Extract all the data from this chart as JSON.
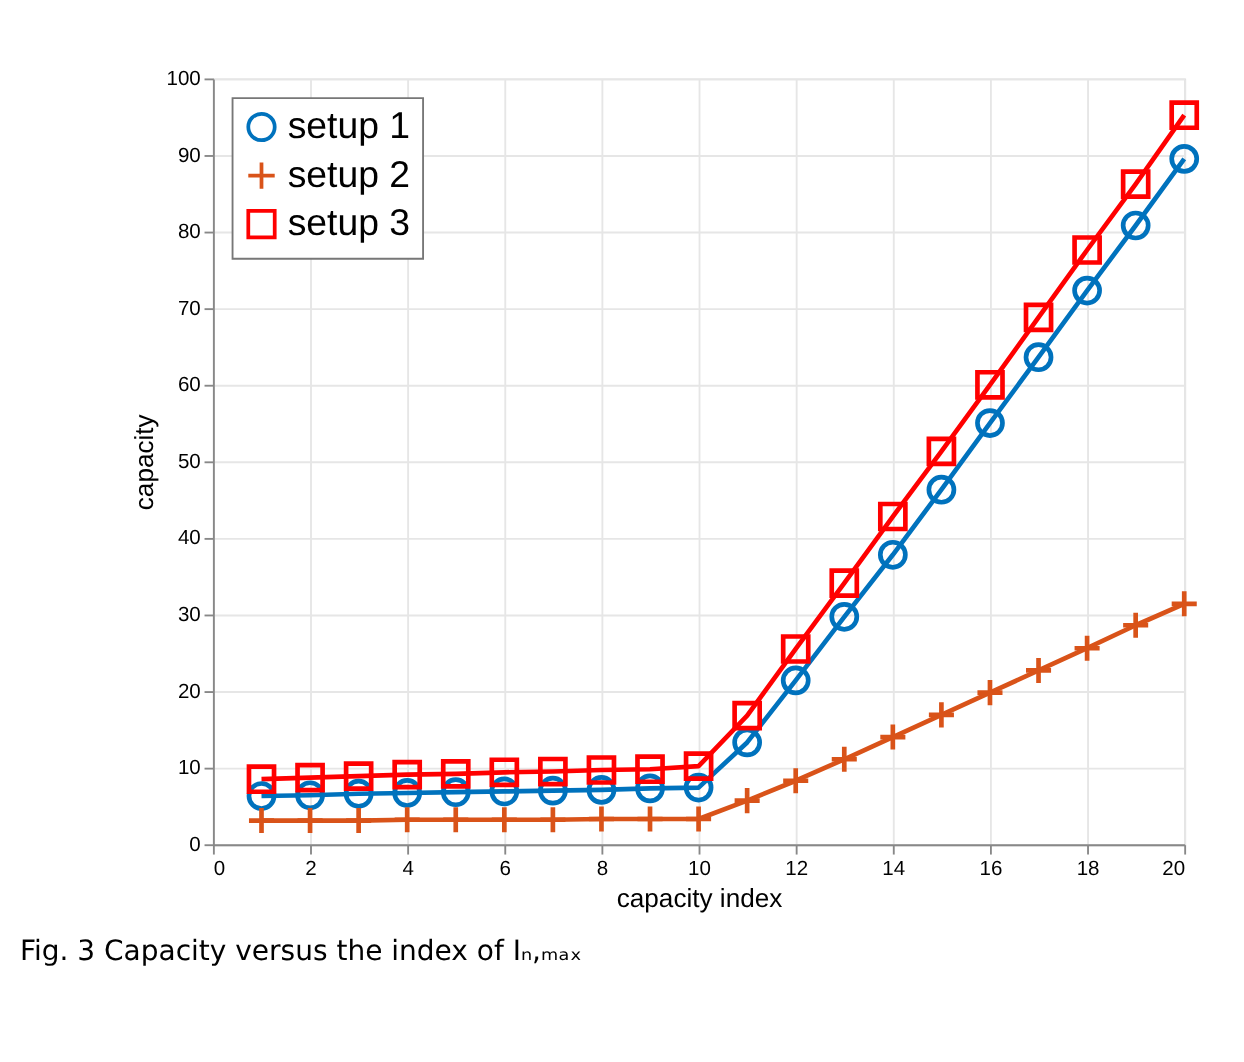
{
  "chart_data": {
    "type": "line",
    "xlabel": "capacity index",
    "ylabel": "capacity",
    "x": [
      1,
      2,
      3,
      4,
      5,
      6,
      7,
      8,
      9,
      10,
      11,
      12,
      13,
      14,
      15,
      16,
      17,
      18,
      19,
      20
    ],
    "series": [
      {
        "name": "setup 1",
        "color": "#0072bd",
        "marker": "circle",
        "values": [
          6.3,
          6.4,
          6.6,
          6.7,
          6.8,
          6.9,
          7.0,
          7.1,
          7.3,
          7.4,
          13.3,
          21.4,
          29.7,
          37.8,
          46.3,
          55.0,
          63.6,
          72.3,
          80.8,
          89.5
        ]
      },
      {
        "name": "setup 2",
        "color": "#d95319",
        "marker": "cross",
        "values": [
          3.1,
          3.1,
          3.1,
          3.2,
          3.2,
          3.2,
          3.2,
          3.3,
          3.3,
          3.3,
          5.7,
          8.3,
          11.1,
          14.0,
          16.9,
          19.8,
          22.7,
          25.6,
          28.6,
          31.4
        ]
      },
      {
        "name": "setup 3",
        "color": "#ff0000",
        "marker": "square",
        "values": [
          8.5,
          8.7,
          8.9,
          9.1,
          9.2,
          9.4,
          9.5,
          9.7,
          9.8,
          10.2,
          16.8,
          25.5,
          34.1,
          42.8,
          51.3,
          60.0,
          68.8,
          77.6,
          86.2,
          95.2
        ]
      }
    ],
    "xlim": [
      0,
      20
    ],
    "xticks": [
      0,
      2,
      4,
      6,
      8,
      10,
      12,
      14,
      16,
      18,
      20
    ],
    "ylim": [
      0,
      100
    ],
    "yticks": [
      0,
      10,
      20,
      30,
      40,
      50,
      60,
      70,
      80,
      90,
      100
    ],
    "grid": true,
    "legend": "top left",
    "line_style": "solid",
    "annotations": [
      "Fig. 3 Capacity versus the index of Iₙ,ₘₐₓ"
    ]
  }
}
